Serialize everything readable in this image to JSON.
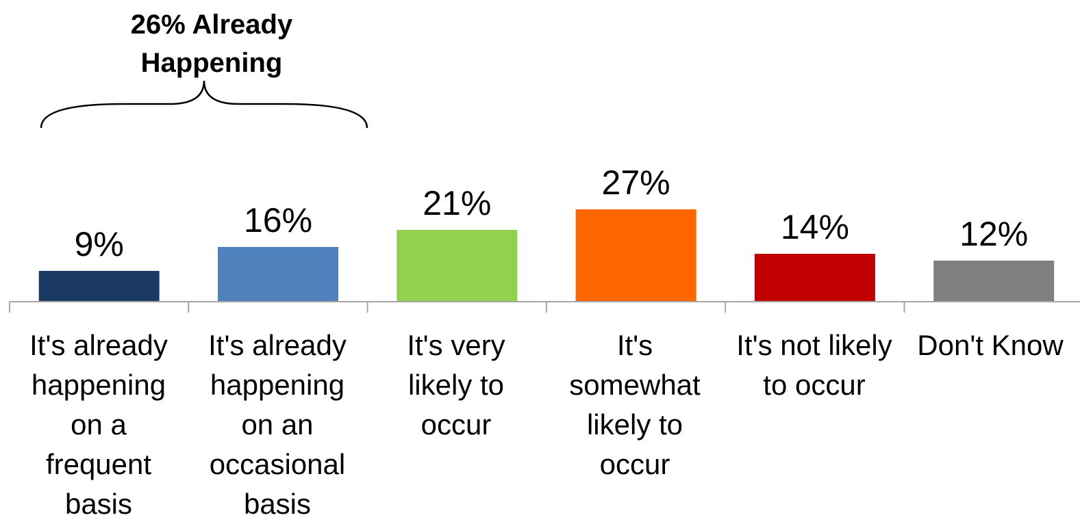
{
  "chart_data": {
    "type": "bar",
    "categories": [
      "It's already\nhappening\non a\nfrequent\nbasis",
      "It's already\nhappening\non an\noccasional\nbasis",
      "It's very\nlikely to\noccur",
      "It's\nsomewhat\nlikely to\noccur",
      "It's not likely\nto occur",
      "Don't Know"
    ],
    "values": [
      9,
      16,
      21,
      27,
      14,
      12
    ],
    "value_labels": [
      "9%",
      "16%",
      "21%",
      "27%",
      "14%",
      "12%"
    ],
    "colors": [
      "#1b3a63",
      "#4f81bd",
      "#92d050",
      "#ff6600",
      "#c00000",
      "#808080"
    ],
    "ylim": [
      0,
      27
    ],
    "grid": false,
    "legend": "none",
    "annotations": [
      {
        "text": "26% Already\nHappening",
        "spans_categories": [
          0,
          1
        ],
        "style": "brace"
      }
    ]
  }
}
